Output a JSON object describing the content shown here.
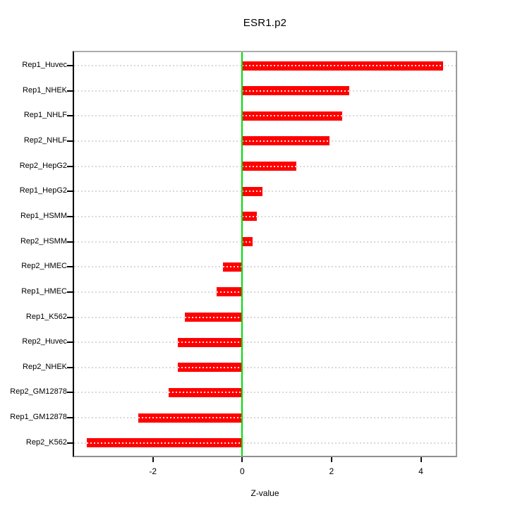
{
  "chart_data": {
    "type": "bar",
    "orientation": "horizontal",
    "title": "ESR1.p2",
    "xlabel": "Z-value",
    "ylabel": "",
    "categories": [
      "Rep1_Huvec",
      "Rep1_NHEK",
      "Rep1_NHLF",
      "Rep2_NHLF",
      "Rep2_HepG2",
      "Rep1_HepG2",
      "Rep1_HSMM",
      "Rep2_HSMM",
      "Rep2_HMEC",
      "Rep1_HMEC",
      "Rep1_K562",
      "Rep2_Huvec",
      "Rep2_NHEK",
      "Rep2_GM12878",
      "Rep1_GM12878",
      "Rep2_K562"
    ],
    "values": [
      4.5,
      2.39,
      2.24,
      1.95,
      1.21,
      0.46,
      0.33,
      0.23,
      -0.43,
      -0.58,
      -1.28,
      -1.44,
      -1.45,
      -1.65,
      -2.32,
      -3.48
    ],
    "xticks": [
      -2,
      0,
      2,
      4
    ],
    "xtick_labels": [
      "-2",
      "0",
      "2",
      "4"
    ],
    "xlim": [
      -3.8,
      4.8
    ],
    "grid": "dotted-horizontal",
    "legend": "none",
    "colors": {
      "bar": "#ff0000",
      "zero_line": "#00dc00",
      "gridline": "#d8d8d8",
      "frame": "#9c9c9c",
      "axis": "#000000",
      "text": "#000000",
      "background": "#ffffff"
    }
  }
}
